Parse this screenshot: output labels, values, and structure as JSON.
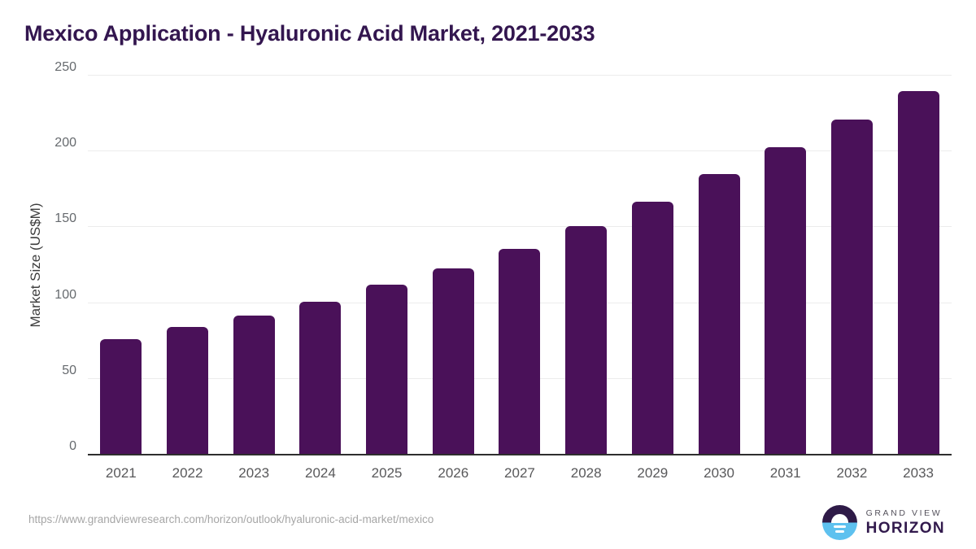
{
  "header": {
    "title": "Mexico Application - Hyaluronic Acid Market, 2021-2033"
  },
  "chart_data": {
    "type": "bar",
    "title": "Mexico Application - Hyaluronic Acid Market, 2021-2033",
    "xlabel": "",
    "ylabel": "Market Size (US$M)",
    "categories": [
      "2021",
      "2022",
      "2023",
      "2024",
      "2025",
      "2026",
      "2027",
      "2028",
      "2029",
      "2030",
      "2031",
      "2032",
      "2033"
    ],
    "values": [
      76,
      84,
      92,
      101,
      112,
      123,
      136,
      151,
      167,
      185,
      203,
      221,
      240
    ],
    "ylim": [
      0,
      250
    ],
    "y_ticks": [
      0,
      50,
      100,
      150,
      200,
      250
    ],
    "grid": "horizontal gridlines on",
    "legend": "none",
    "bar_color": "#4a1159"
  },
  "colors": {
    "bar": "#4a1159",
    "title_text": "#33164f",
    "axis_text": "#666a6e",
    "gridline": "#ececec",
    "baseline": "#2e2e2e",
    "logo_dark_purple": "#2e1a47",
    "logo_blue": "#5ec1ef"
  },
  "footer": {
    "source_url": "https://www.grandviewresearch.com/horizon/outlook/hyaluronic-acid-market/mexico",
    "logo": {
      "top": "GRAND VIEW",
      "bottom": "HORIZON"
    }
  }
}
